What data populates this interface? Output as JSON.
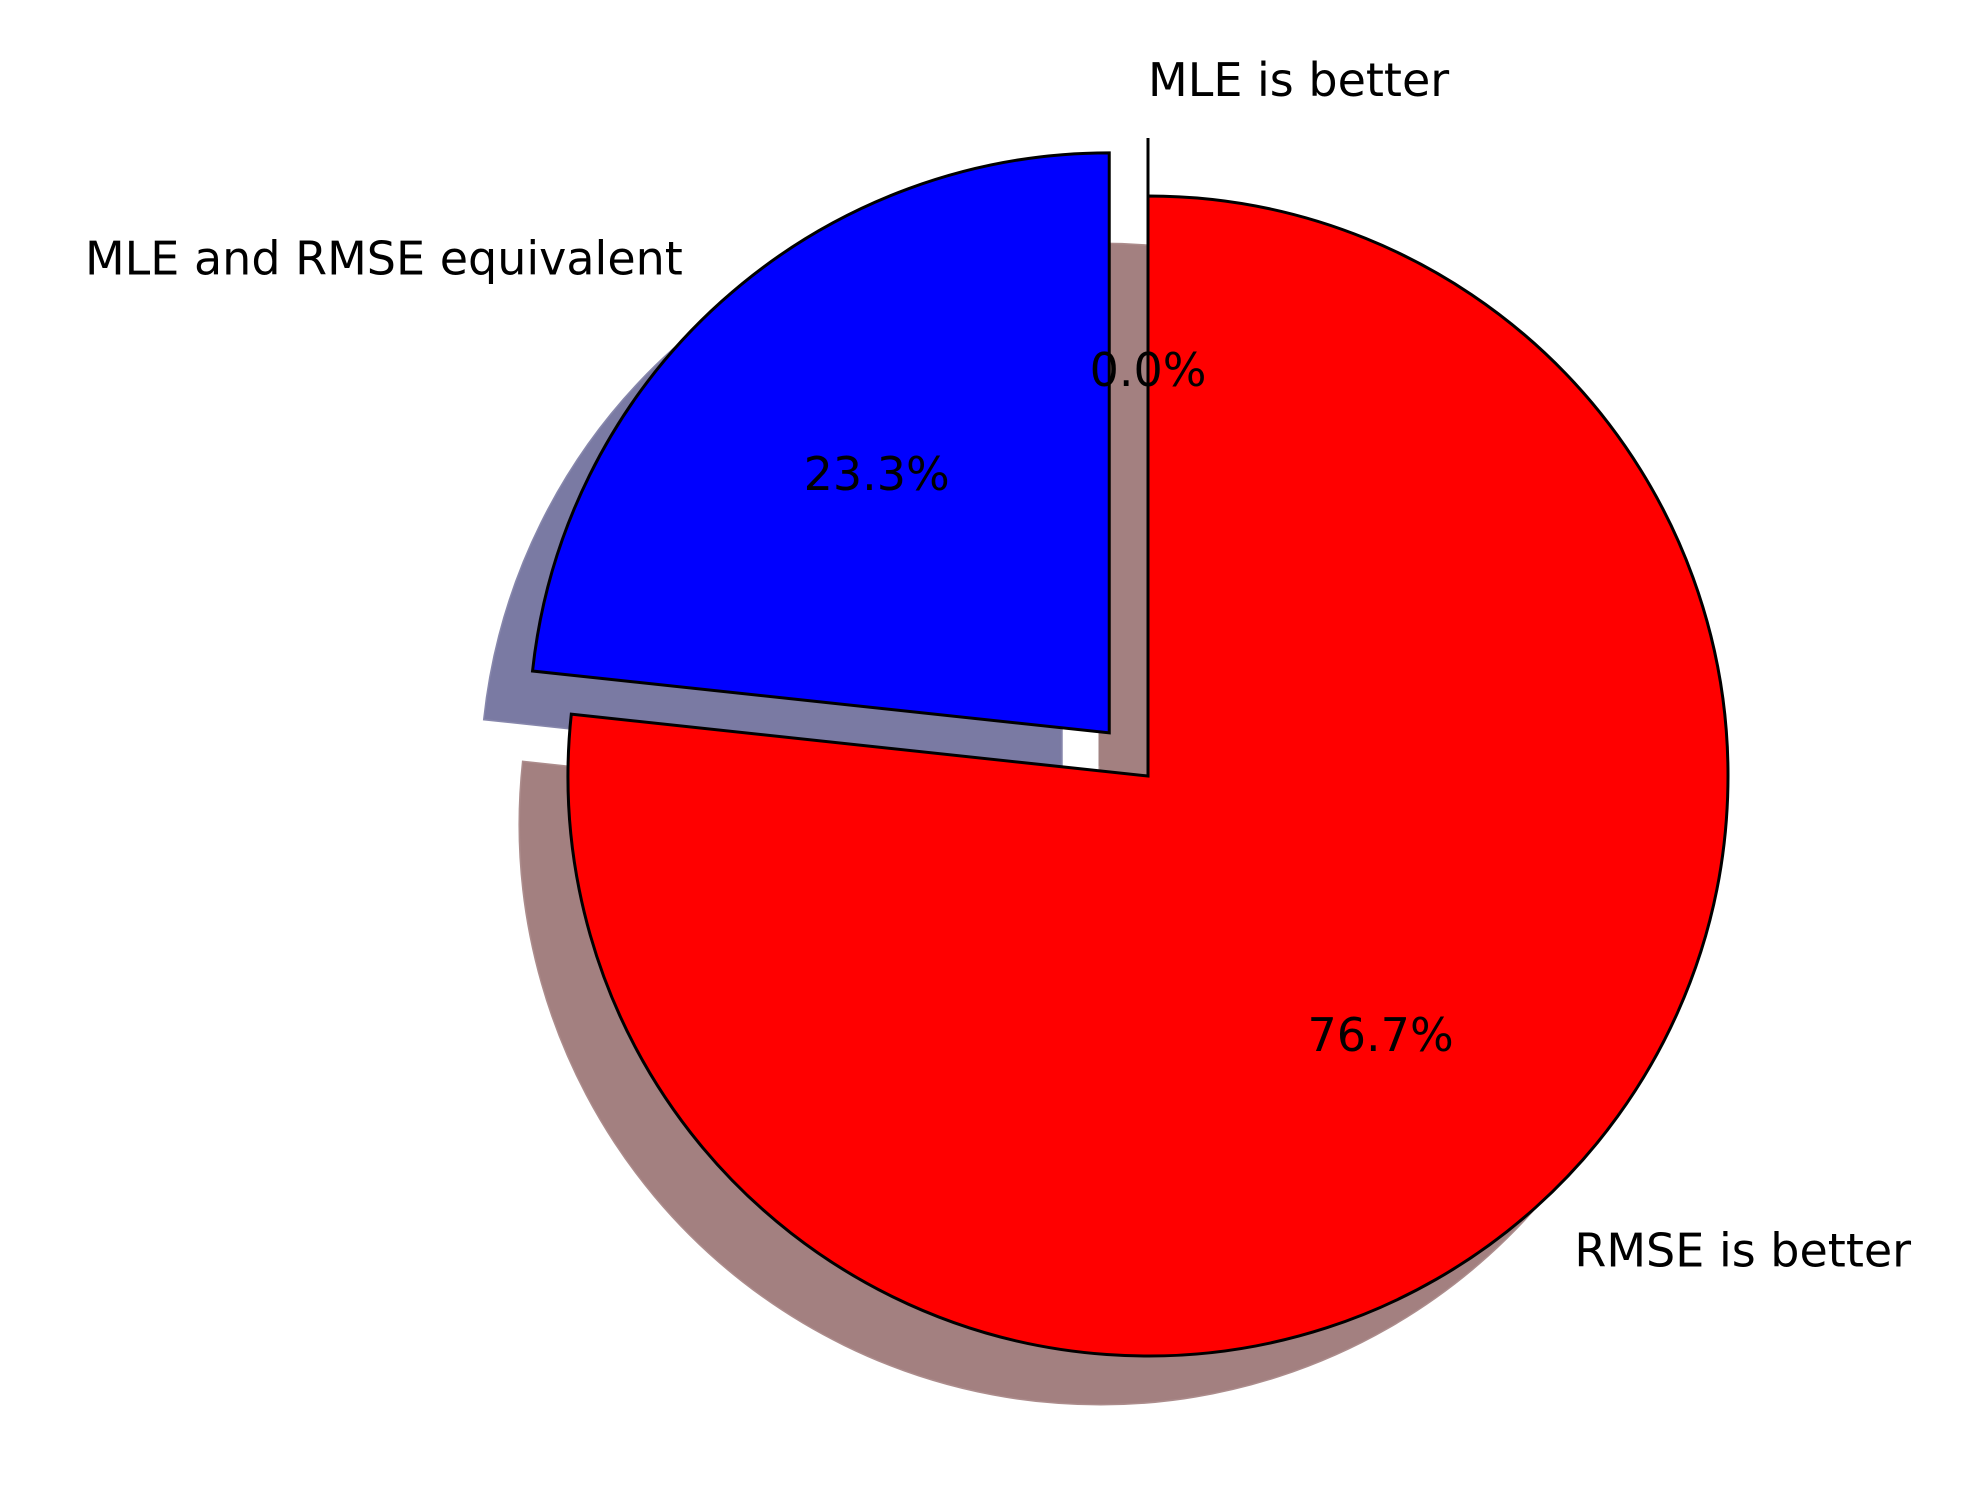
{
  "chart_data": {
    "type": "pie",
    "title": "",
    "slices": [
      {
        "label": "MLE is better",
        "pct_label": "0.0%",
        "value": 0.0,
        "color": "#008000",
        "shadow_color": "#7a8f7a",
        "explode": true
      },
      {
        "label": "MLE and RMSE equivalent",
        "pct_label": "23.3%",
        "value": 23.3,
        "color": "#0000ff",
        "shadow_color": "#7a7aa3",
        "explode": true
      },
      {
        "label": "RMSE is better",
        "pct_label": "76.7%",
        "value": 76.7,
        "color": "#ff0000",
        "shadow_color": "#a38080",
        "explode": false
      }
    ],
    "start_angle_deg": 90,
    "direction": "counterclockwise",
    "shadow": true,
    "edge_color": "#000000",
    "legend": "none"
  }
}
